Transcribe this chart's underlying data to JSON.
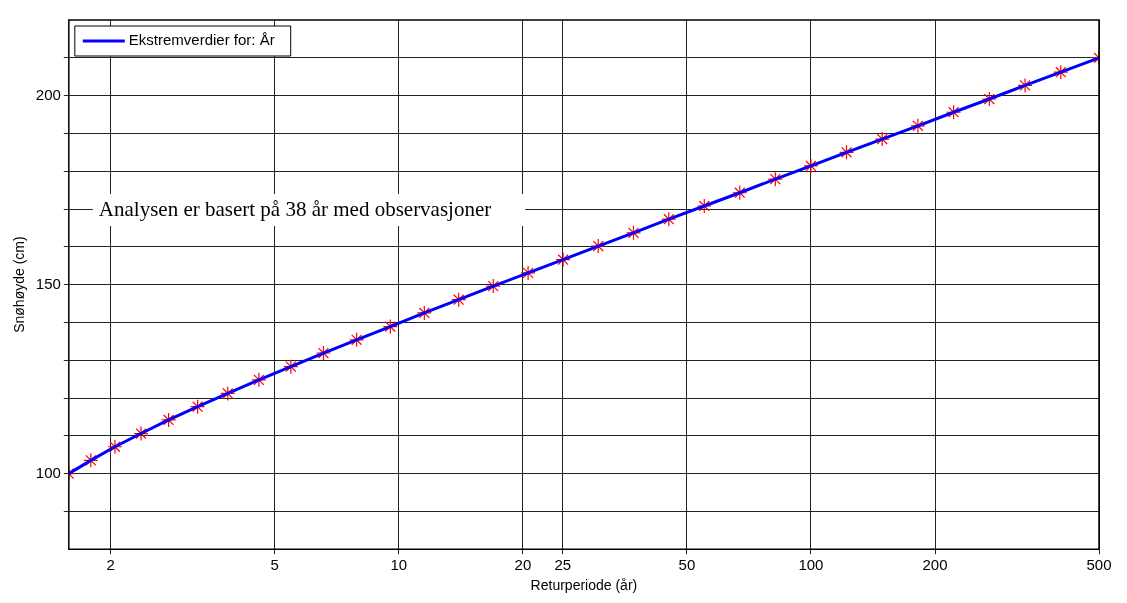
{
  "chart_data": {
    "type": "line",
    "xlabel": "Returperiode (år)",
    "ylabel": "Snøhøyde (cm)",
    "x": [
      1.582,
      1.789,
      2.047,
      2.368,
      2.763,
      3.249,
      3.845,
      4.576,
      5.47,
      6.563,
      7.9,
      9.534,
      11.53,
      13.97,
      16.95,
      20.59,
      25.04,
      30.47,
      37.1,
      45.2,
      55.1,
      67.19,
      81.95,
      99.98,
      122.0,
      148.9,
      181.8,
      221.9,
      270.9,
      330.8,
      403.9,
      500
    ],
    "series": [
      {
        "name": "Ekstremverdier for: År",
        "type": "line",
        "color": "#0000ff",
        "values": [
          100,
          103.5,
          107.1,
          110.6,
          114.2,
          117.7,
          121.2,
          124.8,
          128.3,
          131.9,
          135.4,
          138.9,
          142.5,
          146.0,
          149.6,
          153.1,
          156.6,
          160.2,
          163.7,
          167.3,
          170.8,
          174.3,
          177.9,
          181.4,
          185.0,
          188.5,
          192.0,
          195.6,
          199.1,
          202.7,
          206.2,
          210
        ]
      },
      {
        "type": "scatter",
        "color": "#ff0000",
        "marker": "cross",
        "values": [
          100,
          103.5,
          107.1,
          110.6,
          114.2,
          117.7,
          121.2,
          124.8,
          128.3,
          131.9,
          135.4,
          138.9,
          142.5,
          146.0,
          149.6,
          153.1,
          156.6,
          160.2,
          163.7,
          167.3,
          170.8,
          174.3,
          177.9,
          181.4,
          185.0,
          188.5,
          192.0,
          195.6,
          199.1,
          202.7,
          206.2,
          210
        ]
      }
    ],
    "xlim": [
      1.582,
      500
    ],
    "xticks": [
      2,
      5,
      10,
      20,
      25,
      50,
      100,
      200,
      500
    ],
    "log": "x",
    "ylim": [
      80,
      220
    ],
    "yticks": [
      {
        "value": 90,
        "label": null
      },
      100,
      {
        "value": 110,
        "label": null
      },
      {
        "value": 120,
        "label": null
      },
      {
        "value": 130,
        "label": null
      },
      {
        "value": 140,
        "label": null
      },
      150,
      {
        "value": 160,
        "label": null
      },
      {
        "value": 170,
        "label": null
      },
      {
        "value": 180,
        "label": null
      },
      {
        "value": 190,
        "label": null
      },
      200,
      {
        "value": 210,
        "label": null
      }
    ],
    "grid": true,
    "legend": "top left",
    "annotations": [
      "Analysen er basert på 38 år med observasjoner"
    ]
  }
}
